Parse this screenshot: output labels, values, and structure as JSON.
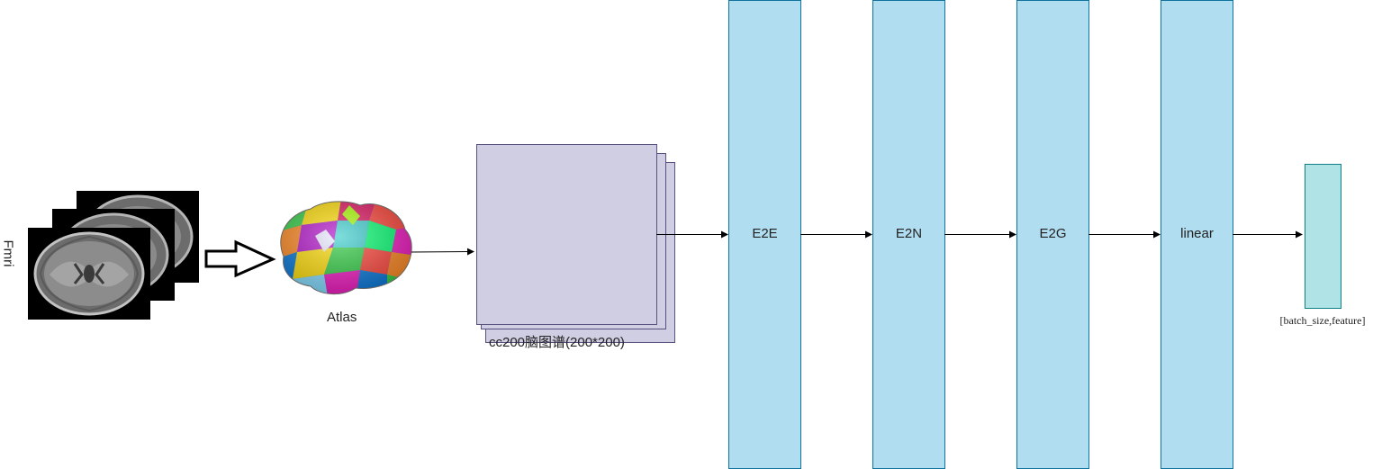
{
  "input_label": "Fmri",
  "atlas_label": "Atlas",
  "matrix_label": "cc200脑图谱(200*200)",
  "blocks": [
    {
      "id": "e2e",
      "label": "E2E"
    },
    {
      "id": "e2n",
      "label": "E2N"
    },
    {
      "id": "e2g",
      "label": "E2G"
    },
    {
      "id": "linear",
      "label": "linear"
    }
  ],
  "output_label": "[batch_size,feature]",
  "colors": {
    "block_fill": "#b1ddf0",
    "block_stroke": "#10739e",
    "matrix_fill": "#d0cee2",
    "matrix_stroke": "#56517e",
    "output_fill": "#b0e3e6",
    "output_stroke": "#0e8088",
    "arrow": "#000000"
  },
  "icons": {
    "mri": "mri-slice-stack-icon",
    "brain": "brain-atlas-icon",
    "hollow_arrow": "hollow-arrow-icon"
  }
}
